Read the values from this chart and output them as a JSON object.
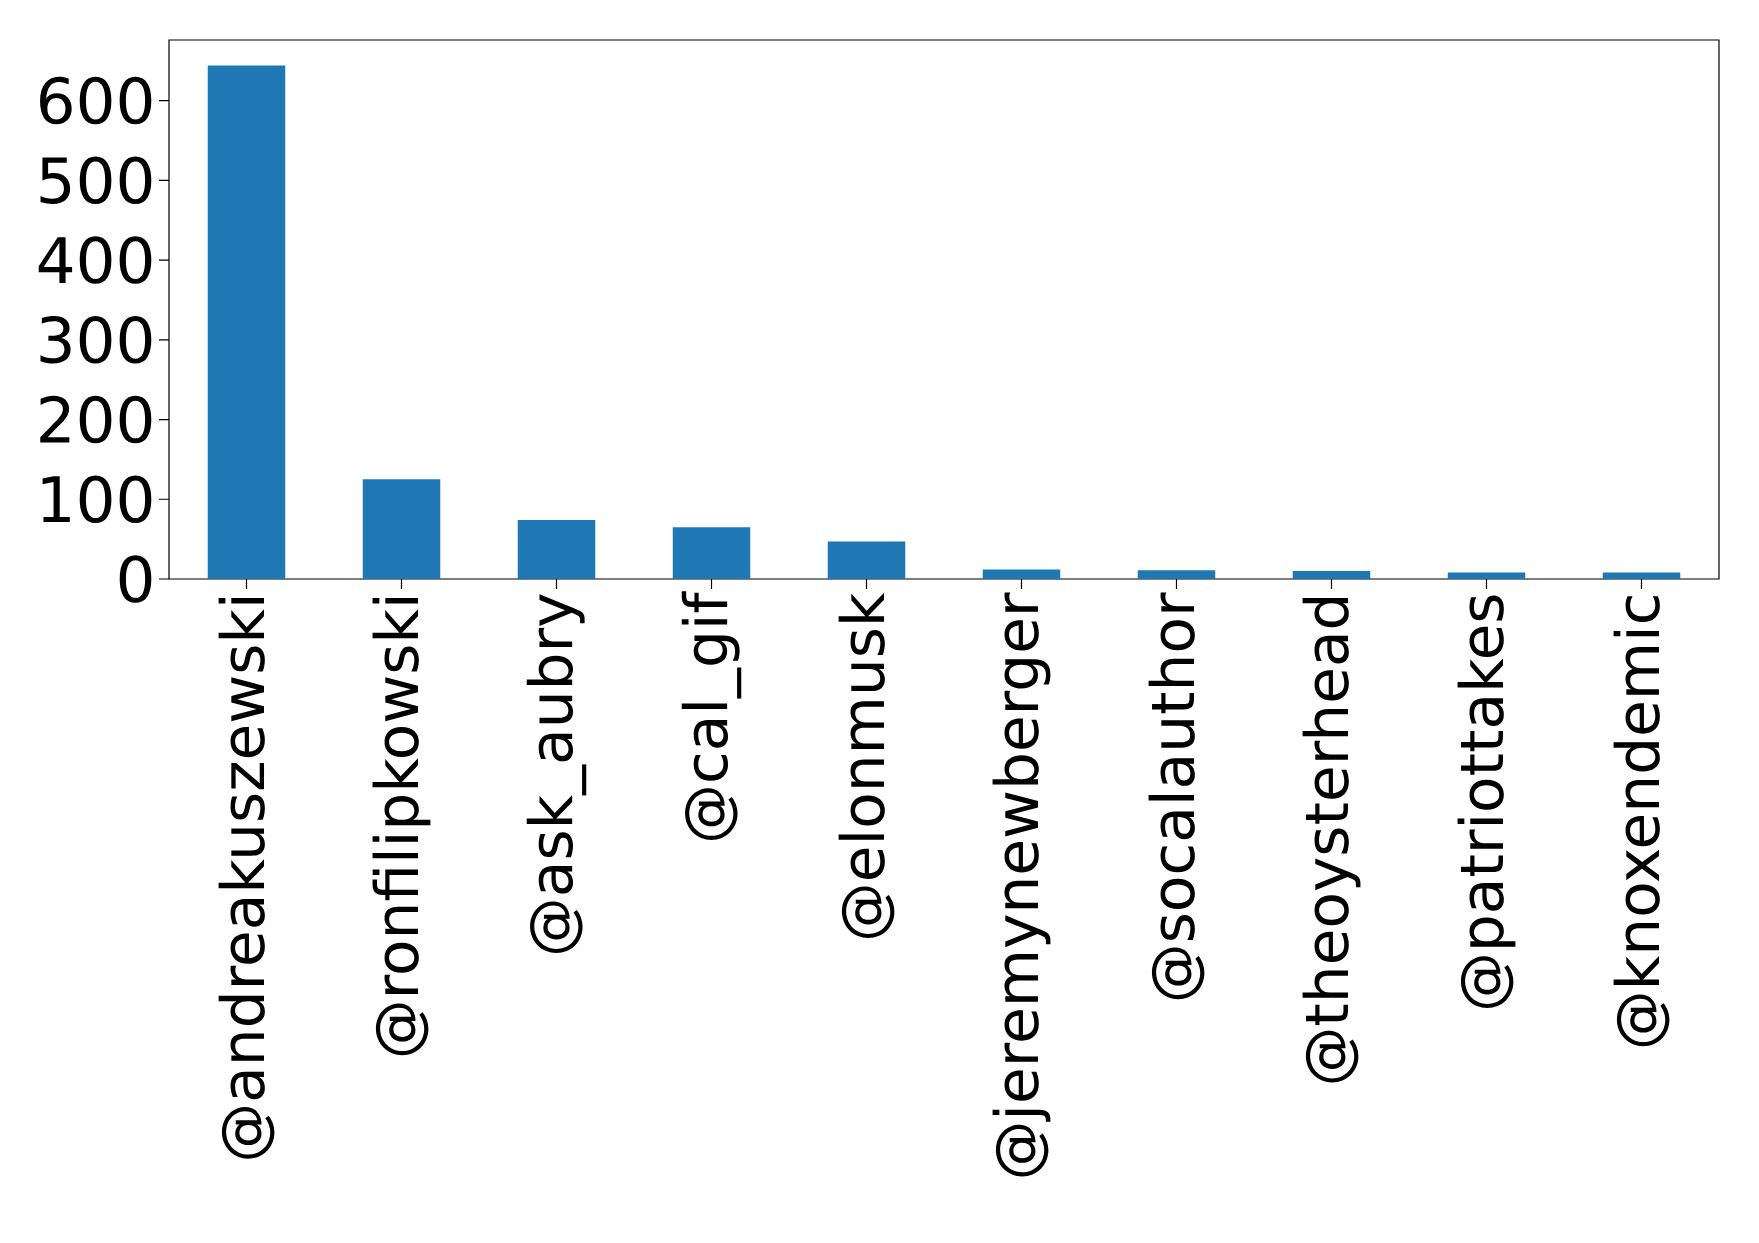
{
  "chart_data": {
    "type": "bar",
    "categories": [
      "@andreakuszewski",
      "@ronfilipkowski",
      "@ask_aubry",
      "@cal_gif",
      "@elonmusk",
      "@jeremynewberger",
      "@socalauthor",
      "@theoysterhead",
      "@patriottakes",
      "@knoxendemic"
    ],
    "values": [
      644,
      125,
      74,
      65,
      47,
      12,
      11,
      10,
      8,
      8
    ],
    "color": "#1f77b4",
    "ylim": [
      0,
      676
    ],
    "yticks": [
      0,
      100,
      200,
      300,
      400,
      500,
      600
    ]
  }
}
